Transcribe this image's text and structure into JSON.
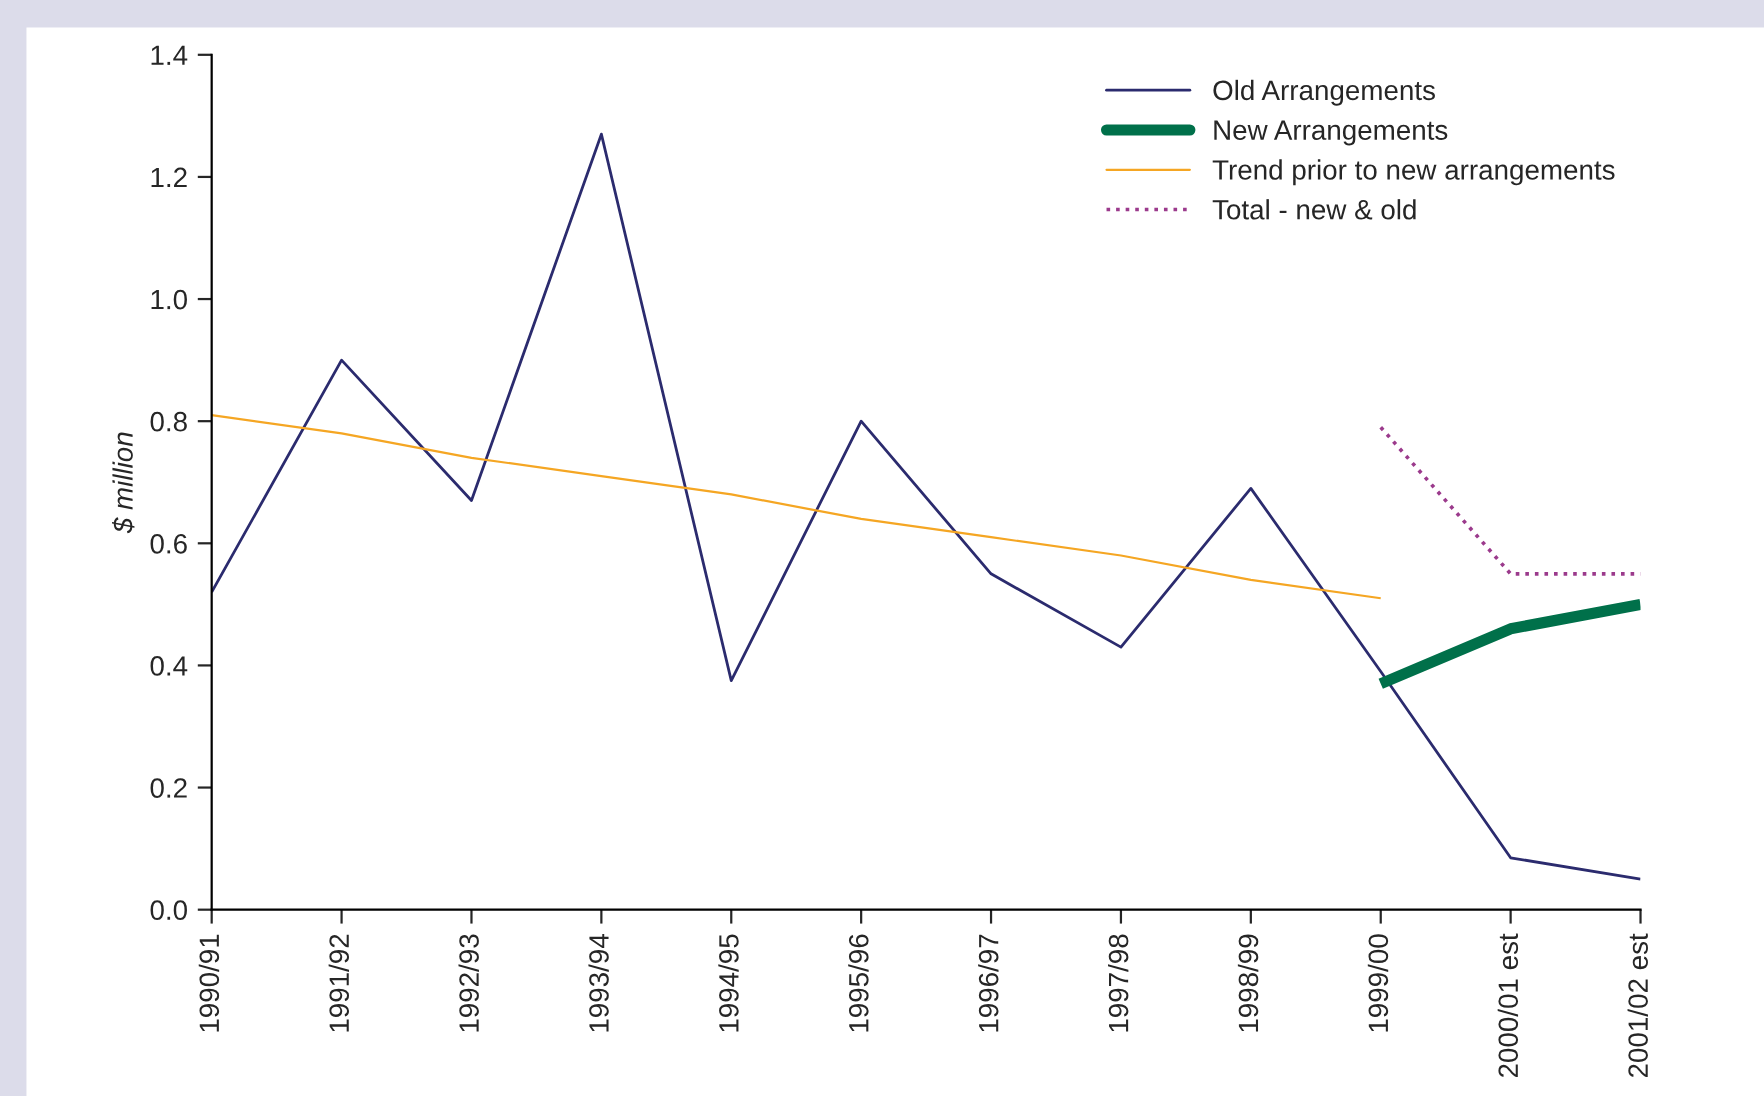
{
  "chart_data": {
    "type": "line",
    "ylabel": "$ million",
    "categories": [
      "1990/91",
      "1991/92",
      "1992/93",
      "1993/94",
      "1994/95",
      "1995/96",
      "1996/97",
      "1997/98",
      "1998/99",
      "1999/00",
      "2000/01 est",
      "2001/02 est"
    ],
    "series": [
      {
        "name": "Old Arrangements",
        "color": "#2b2b6e",
        "values": [
          0.52,
          0.9,
          0.67,
          1.27,
          0.375,
          0.8,
          0.55,
          0.43,
          0.69,
          0.39,
          0.085,
          0.05
        ]
      },
      {
        "name": "New Arrangements",
        "color": "#00704a",
        "values": [
          null,
          null,
          null,
          null,
          null,
          null,
          null,
          null,
          null,
          0.37,
          0.46,
          0.5
        ]
      },
      {
        "name": "Trend prior to new arrangements",
        "color": "#f5a623",
        "values": [
          0.81,
          0.78,
          0.74,
          0.71,
          0.68,
          0.64,
          0.61,
          0.58,
          0.54,
          0.51,
          null,
          null
        ]
      },
      {
        "name": "Total - new & old",
        "color": "#9b3a8c",
        "line_style": "dotted",
        "values": [
          null,
          null,
          null,
          null,
          null,
          null,
          null,
          null,
          null,
          0.79,
          0.55,
          0.55
        ]
      }
    ],
    "ylim": [
      0,
      1.4
    ],
    "yticks": [
      {
        "value": 0,
        "label": "0.0"
      },
      {
        "value": 0.2,
        "label": "0.2"
      },
      {
        "value": 0.4,
        "label": "0.4"
      },
      {
        "value": 0.6,
        "label": "0.6"
      },
      {
        "value": 0.8,
        "label": "0.8"
      },
      {
        "value": 1,
        "label": "1.0"
      },
      {
        "value": 1.2,
        "label": "1.2"
      },
      {
        "value": 1.4,
        "label": "1.4"
      }
    ],
    "grid": false,
    "legend": "top right"
  }
}
